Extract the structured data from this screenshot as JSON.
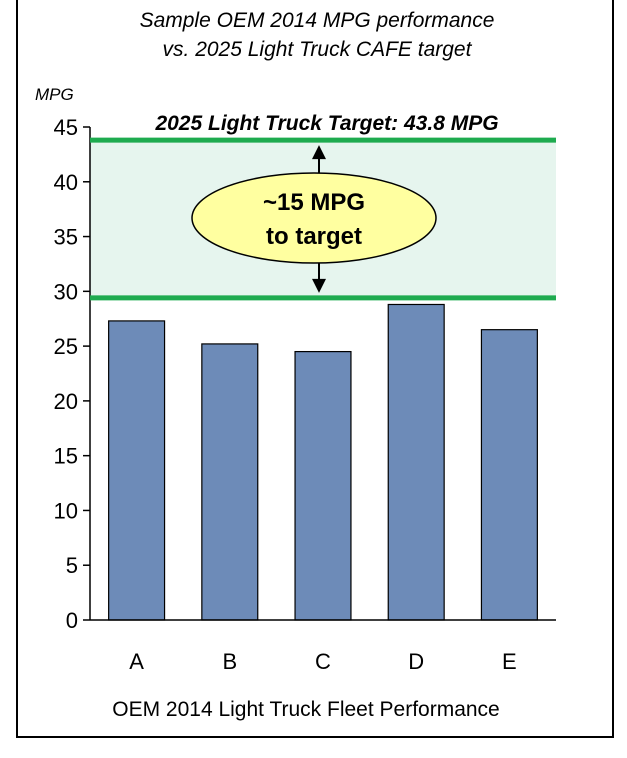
{
  "chart_data": {
    "type": "bar",
    "title": "Sample OEM 2014 MPG performance",
    "subtitle": "vs. 2025 Light Truck CAFE target",
    "ylabel": "MPG",
    "xlabel": "OEM 2014 Light Truck Fleet Performance",
    "categories": [
      "A",
      "B",
      "C",
      "D",
      "E"
    ],
    "values": [
      27.3,
      25.2,
      24.5,
      28.8,
      26.5
    ],
    "ylim": [
      0,
      45
    ],
    "yticks": [
      0,
      5,
      10,
      15,
      20,
      25,
      30,
      35,
      40,
      45
    ],
    "grid": false,
    "target": {
      "label": "2025 Light Truck Target: 43.8 MPG",
      "value": 43.8,
      "baseline": 29.4,
      "gap_label_line1": "~15 MPG",
      "gap_label_line2": "to target"
    },
    "colors": {
      "bar": "#6d8bb8",
      "target_line": "#1eab4f",
      "band": "#e6f5ee",
      "ellipse": "#ffffa0"
    }
  }
}
